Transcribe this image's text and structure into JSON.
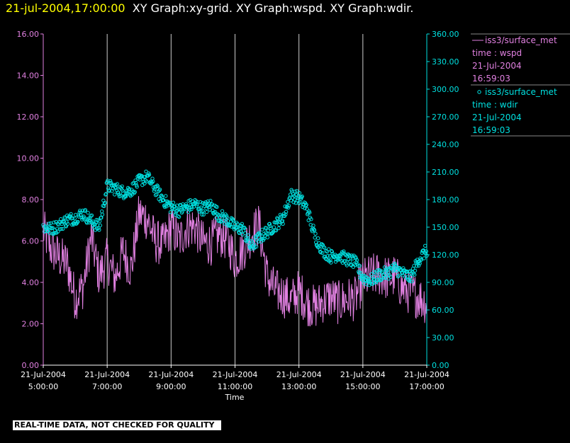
{
  "header": {
    "timestamp": "21-jul-2004,17:00:00",
    "title": "XY Graph:xy-grid.  XY Graph:wspd.  XY Graph:wdir."
  },
  "legend": [
    {
      "line1": "iss3/surface_met",
      "line2": "time : wspd",
      "line3": "21-Jul-2004",
      "line4": "16:59:03",
      "marker": "line",
      "color": "#e080e0"
    },
    {
      "line1": "iss3/surface_met",
      "line2": "time : wdir",
      "line3": "21-Jul-2004",
      "line4": "16:59:03",
      "marker": "circle",
      "color": "#00e0e0"
    }
  ],
  "disclaimer": "REAL-TIME DATA, NOT CHECKED FOR QUALITY",
  "chart_data": {
    "type": "line",
    "xlabel": "Time",
    "x_ticks": [
      {
        "date": "21-Jul-2004",
        "time": "5:00:00"
      },
      {
        "date": "21-Jul-2004",
        "time": "7:00:00"
      },
      {
        "date": "21-Jul-2004",
        "time": "9:00:00"
      },
      {
        "date": "21-Jul-2004",
        "time": "11:00:00"
      },
      {
        "date": "21-Jul-2004",
        "time": "13:00:00"
      },
      {
        "date": "21-Jul-2004",
        "time": "15:00:00"
      },
      {
        "date": "21-Jul-2004",
        "time": "17:00:00"
      }
    ],
    "xlim": [
      "21-Jul-2004 05:00",
      "21-Jul-2004 17:00"
    ],
    "left_axis": {
      "ylim": [
        0,
        16
      ],
      "ticks": [
        "0.00",
        "2.00",
        "4.00",
        "6.00",
        "8.00",
        "10.00",
        "12.00",
        "14.00",
        "16.00"
      ],
      "color": "#e080e0"
    },
    "right_axis": {
      "ylim": [
        0,
        360
      ],
      "ticks": [
        "0.00",
        "30.00",
        "60.00",
        "90.00",
        "120.00",
        "150.00",
        "180.00",
        "210.00",
        "240.00",
        "270.00",
        "300.00",
        "330.00",
        "360.00"
      ],
      "color": "#00e0e0"
    },
    "grid": "vertical",
    "series": [
      {
        "name": "iss3/surface_met time : wspd",
        "axis": "left",
        "style": "line",
        "color": "#e080e0",
        "x_hours": [
          5.0,
          5.25,
          5.5,
          5.75,
          6.0,
          6.25,
          6.5,
          6.75,
          7.0,
          7.25,
          7.5,
          7.75,
          8.0,
          8.25,
          8.5,
          8.75,
          9.0,
          9.25,
          9.5,
          9.75,
          10.0,
          10.25,
          10.5,
          10.75,
          11.0,
          11.25,
          11.5,
          11.75,
          12.0,
          12.25,
          12.5,
          12.75,
          13.0,
          13.25,
          13.5,
          13.75,
          14.0,
          14.25,
          14.5,
          14.75,
          15.0,
          15.25,
          15.5,
          15.75,
          16.0,
          16.25,
          16.5,
          16.75,
          17.0
        ],
        "values": [
          6.5,
          5.6,
          5.2,
          4.9,
          3.2,
          3.8,
          6.2,
          4.3,
          5.1,
          4.2,
          5.5,
          4.6,
          7.3,
          7.1,
          6.0,
          5.8,
          6.7,
          6.0,
          6.7,
          6.7,
          5.9,
          5.9,
          6.3,
          6.1,
          5.1,
          5.6,
          6.3,
          6.8,
          4.3,
          3.6,
          3.4,
          3.1,
          3.6,
          3.0,
          2.8,
          3.1,
          3.3,
          3.0,
          3.2,
          3.2,
          4.1,
          4.3,
          4.4,
          4.2,
          4.3,
          3.7,
          3.5,
          3.3,
          3.0
        ]
      },
      {
        "name": "iss3/surface_met time : wdir",
        "axis": "right",
        "style": "markers",
        "color": "#00e0e0",
        "x_hours": [
          5.0,
          5.25,
          5.5,
          5.75,
          6.0,
          6.25,
          6.5,
          6.75,
          7.0,
          7.25,
          7.5,
          7.75,
          8.0,
          8.25,
          8.5,
          8.75,
          9.0,
          9.25,
          9.5,
          9.75,
          10.0,
          10.25,
          10.5,
          10.75,
          11.0,
          11.25,
          11.5,
          11.75,
          12.0,
          12.25,
          12.5,
          12.75,
          13.0,
          13.25,
          13.5,
          13.75,
          14.0,
          14.25,
          14.5,
          14.75,
          15.0,
          15.25,
          15.5,
          15.75,
          16.0,
          16.25,
          16.5,
          16.75,
          17.0
        ],
        "values": [
          150,
          148,
          152,
          158,
          160,
          165,
          157,
          150,
          195,
          192,
          188,
          190,
          200,
          205,
          192,
          180,
          172,
          168,
          172,
          175,
          170,
          174,
          163,
          158,
          150,
          148,
          128,
          138,
          145,
          152,
          160,
          185,
          182,
          170,
          140,
          125,
          118,
          120,
          115,
          112,
          95,
          92,
          98,
          100,
          105,
          100,
          95,
          115,
          125
        ]
      }
    ]
  }
}
